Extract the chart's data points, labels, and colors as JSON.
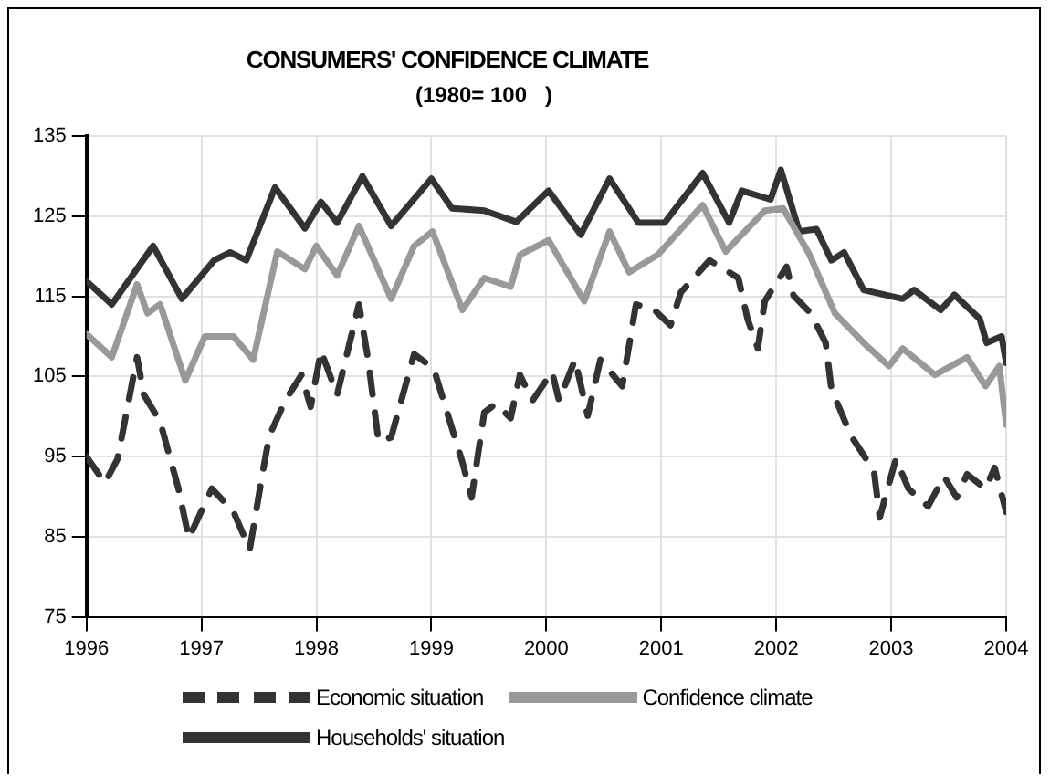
{
  "chart_data": {
    "type": "line",
    "title": "CONSUMERS' CONFIDENCE CLIMATE",
    "subtitle": "(1980= 100   )",
    "xlim": [
      1996,
      2004
    ],
    "xticks": [
      1996,
      1997,
      1998,
      1999,
      2000,
      2001,
      2002,
      2003,
      2004
    ],
    "ylim": [
      75,
      135
    ],
    "yticks": [
      75,
      85,
      95,
      105,
      115,
      125,
      135
    ],
    "grid": true,
    "legend": "bottom",
    "marker": "none",
    "series": [
      {
        "name": "Economic situation",
        "color": "#333333",
        "line_style": "dashed",
        "x": [
          1996,
          1996.16,
          1996.27,
          1996.44,
          1996.5,
          1996.64,
          1996.8,
          1996.89,
          1997.09,
          1997.28,
          1997.42,
          1997.53,
          1997.59,
          1997.73,
          1997.87,
          1997.95,
          1998.04,
          1998.18,
          1998.37,
          1998.45,
          1998.54,
          1998.65,
          1998.85,
          1999.02,
          1999.27,
          1999.35,
          1999.46,
          1999.56,
          1999.69,
          1999.77,
          1999.88,
          2000.05,
          2000.11,
          2000.25,
          2000.36,
          2000.47,
          2000.66,
          2000.78,
          2000.94,
          2001.08,
          2001.17,
          2001.42,
          2001.67,
          2001.75,
          2001.84,
          2001.9,
          2002.09,
          2002.15,
          2002.3,
          2002.43,
          2002.48,
          2002.65,
          2002.85,
          2002.9,
          2003.04,
          2003.15,
          2003.32,
          2003.46,
          2003.57,
          2003.66,
          2003.82,
          2003.9,
          2004
        ],
        "values": [
          95,
          91.7,
          94.7,
          107.4,
          102.7,
          99.4,
          91,
          84.8,
          91,
          88.1,
          83.4,
          92.8,
          97.6,
          102,
          105.2,
          101.2,
          108.2,
          102.7,
          114,
          107.1,
          96.9,
          97.4,
          107.8,
          106,
          94.3,
          89.9,
          100.5,
          101.6,
          99.8,
          105.2,
          102,
          105.6,
          102,
          107.1,
          100.1,
          107.1,
          103.8,
          114,
          113.3,
          111.4,
          115.5,
          119.5,
          117.3,
          112.2,
          108.5,
          114.4,
          118.7,
          115.1,
          112.9,
          109.2,
          103.4,
          97.6,
          93.2,
          87.4,
          94.7,
          91,
          88.8,
          92.5,
          89.9,
          92.8,
          91,
          93.6,
          88.1
        ]
      },
      {
        "name": "Confidence climate",
        "color": "#999999",
        "line_style": "solid",
        "x": [
          1996,
          1996.22,
          1996.44,
          1996.53,
          1996.64,
          1996.86,
          1997.03,
          1997.28,
          1997.45,
          1997.66,
          1997.9,
          1998,
          1998.18,
          1998.37,
          1998.65,
          1998.85,
          1999.01,
          1999.27,
          1999.46,
          1999.69,
          1999.77,
          2000.02,
          2000.33,
          2000.55,
          2000.72,
          2000.97,
          2001.36,
          2001.56,
          2001.9,
          2002.06,
          2002.29,
          2002.51,
          2002.76,
          2002.98,
          2003.1,
          2003.38,
          2003.66,
          2003.82,
          2003.94,
          2004
        ],
        "values": [
          110.3,
          107.4,
          116.5,
          112.9,
          114,
          104.5,
          110,
          110,
          107.1,
          120.6,
          118.4,
          121.3,
          117.6,
          123.8,
          114.7,
          121.3,
          123.1,
          113.3,
          117.3,
          116.2,
          120.2,
          122,
          114.4,
          123.1,
          118,
          120.2,
          126.4,
          120.6,
          125.7,
          126,
          120.2,
          112.9,
          109.2,
          106.3,
          108.5,
          105.2,
          107.4,
          103.8,
          106.3,
          99
        ]
      },
      {
        "name": "Households' situation",
        "color": "#333333",
        "line_style": "solid",
        "x": [
          1996,
          1996.22,
          1996.58,
          1996.83,
          1997.11,
          1997.25,
          1997.39,
          1997.64,
          1997.9,
          1998.04,
          1998.18,
          1998.4,
          1998.65,
          1999,
          1999.18,
          1999.46,
          1999.74,
          2000.02,
          2000.3,
          2000.55,
          2000.8,
          2001.03,
          2001.36,
          2001.59,
          2001.7,
          2001.95,
          2002.04,
          2002.2,
          2002.35,
          2002.48,
          2002.59,
          2002.76,
          2003.1,
          2003.2,
          2003.43,
          2003.55,
          2003.77,
          2003.83,
          2003.96,
          2004
        ],
        "values": [
          116.9,
          114,
          121.3,
          114.7,
          119.5,
          120.5,
          119.5,
          128.6,
          123.5,
          126.8,
          124.2,
          130,
          123.8,
          129.7,
          126,
          125.7,
          124.3,
          128.2,
          122.7,
          129.7,
          124.2,
          124.2,
          130.4,
          124.2,
          128.2,
          127.1,
          130.8,
          123.1,
          123.4,
          119.5,
          120.5,
          115.8,
          114.7,
          115.8,
          113.3,
          115.2,
          112.2,
          109.2,
          110,
          106.7
        ]
      }
    ]
  }
}
